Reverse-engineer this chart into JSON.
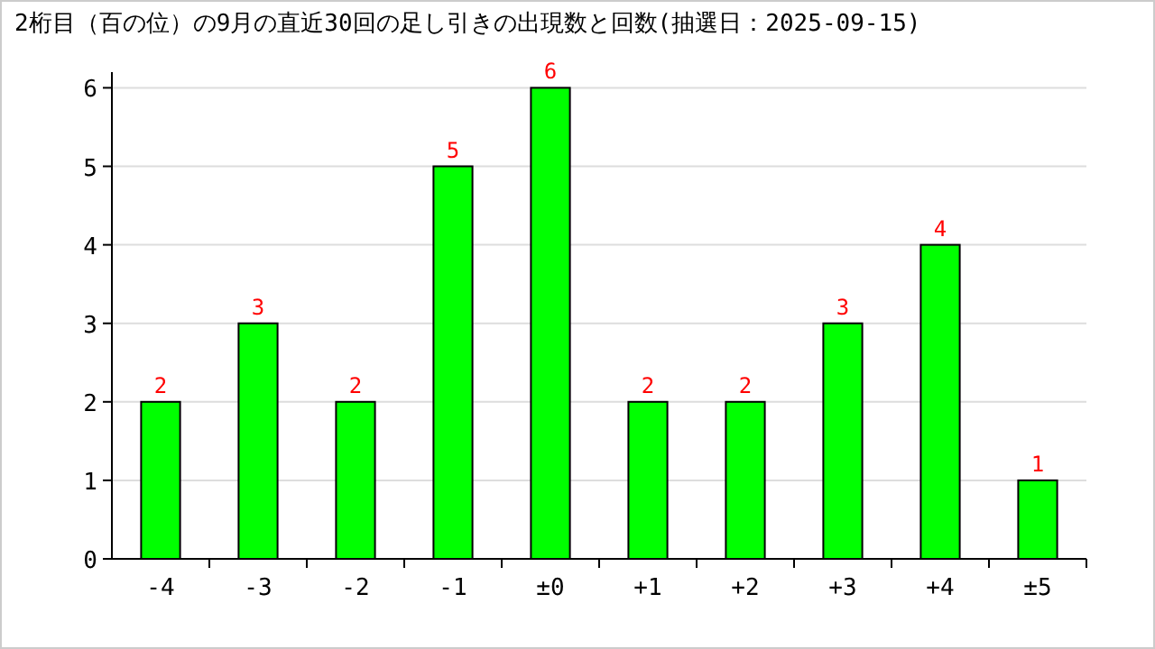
{
  "chart_data": {
    "type": "bar",
    "title": "2桁目（百の位）の9月の直近30回の足し引きの出現数と回数(抽選日：2025-09-15)",
    "categories": [
      "-4",
      "-3",
      "-2",
      "-1",
      "±0",
      "+1",
      "+2",
      "+3",
      "+4",
      "±5"
    ],
    "values": [
      2,
      3,
      2,
      5,
      6,
      2,
      2,
      3,
      4,
      1
    ],
    "color": "#00ff00",
    "ylim": [
      0,
      6.2
    ],
    "yticks": [
      0,
      1,
      2,
      3,
      4,
      5,
      6
    ],
    "grid": "y",
    "data_labels": true
  }
}
